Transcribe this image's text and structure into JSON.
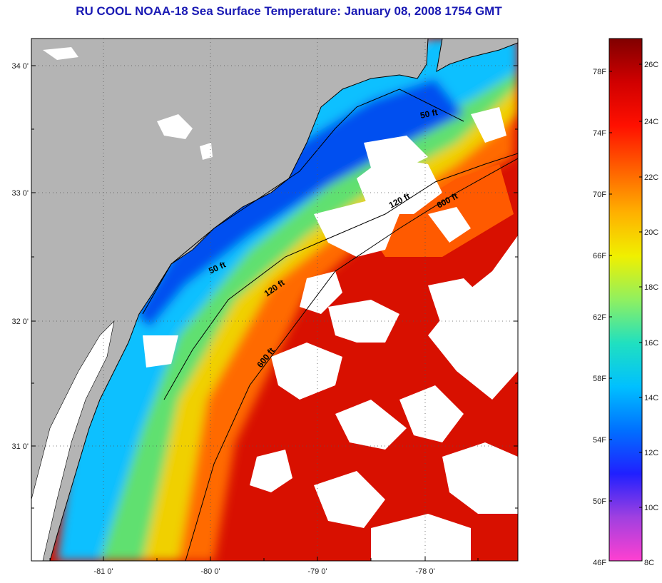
{
  "title": "RU COOL  NOAA-18  Sea Surface Temperature:  January 08, 2008 1754 GMT",
  "map": {
    "lat_labels": [
      "34 0'",
      "33 0'",
      "32 0'",
      "31 0'"
    ],
    "lon_labels": [
      "-81 0'",
      "-80 0'",
      "-79 0'",
      "-78 0'"
    ],
    "contour_labels": [
      "50 ft",
      "120 ft",
      "600 ft",
      "50 ft",
      "120 ft",
      "600 ft"
    ],
    "land_color": "#b4b4b4",
    "cloud_color": "#ffffff"
  },
  "colorbar": {
    "f_labels": [
      "78F",
      "74F",
      "70F",
      "66F",
      "62F",
      "58F",
      "54F",
      "50F",
      "46F"
    ],
    "c_labels": [
      "26C",
      "24C",
      "22C",
      "20C",
      "18C",
      "16C",
      "14C",
      "12C",
      "10C",
      "8C"
    ],
    "stops": [
      "#ff40d0",
      "#a040e0",
      "#2020ff",
      "#0070ff",
      "#00c0ff",
      "#20e0c0",
      "#90f060",
      "#f0f000",
      "#ffb000",
      "#ff6000",
      "#ff1000",
      "#d00000",
      "#800000"
    ]
  }
}
